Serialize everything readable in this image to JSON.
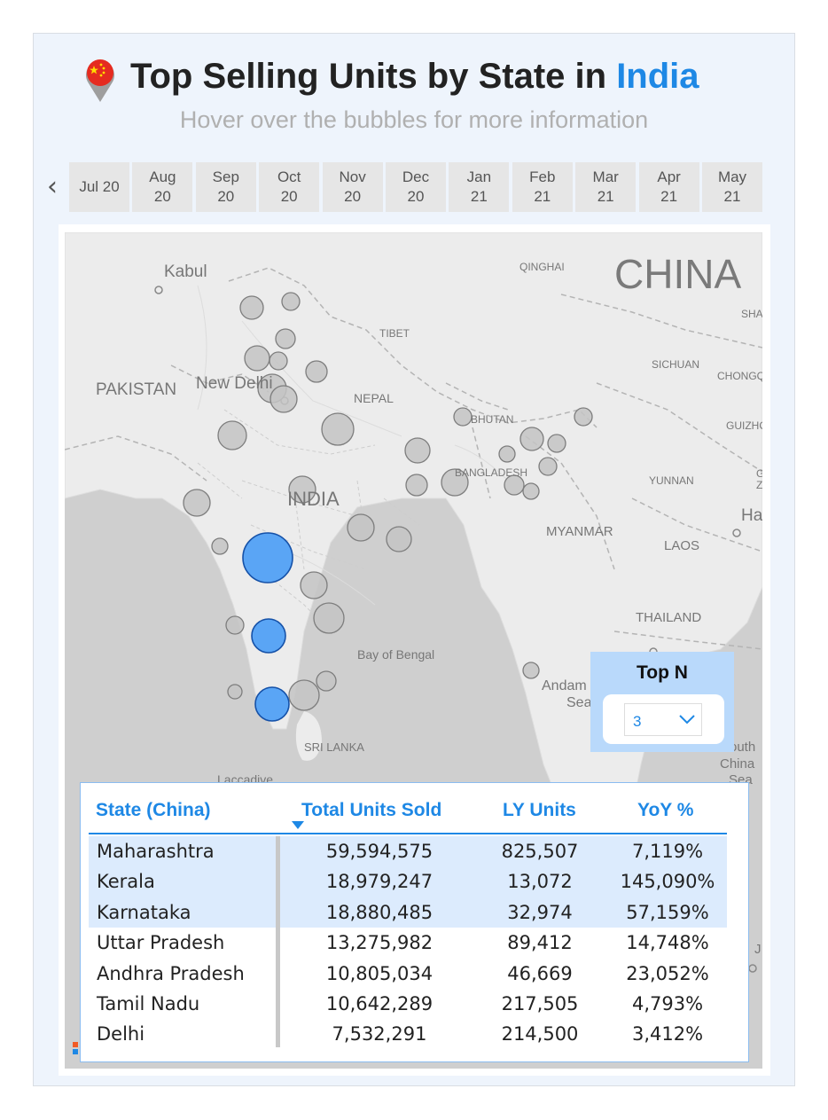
{
  "header": {
    "title_main": "Top Selling Units by State in ",
    "title_accent": "India",
    "subtitle": "Hover over the bubbles for more information"
  },
  "colors": {
    "accent": "#1e88e5",
    "selected_bubble": "#5aa5f5",
    "bubble": "#c4c4c4",
    "selected_row": "#dcebfd",
    "topn_panel": "#b9d9fb"
  },
  "icons": {
    "title_pin": "china-flag-pin-icon",
    "slicer_prev": "chevron-left-icon",
    "dropdown": "chevron-down-icon"
  },
  "date_slicer": {
    "items": [
      "Jul 20",
      "Aug\n20",
      "Sep\n20",
      "Oct\n20",
      "Nov\n20",
      "Dec\n20",
      "Jan\n21",
      "Feb\n21",
      "Mar\n21",
      "Apr\n21",
      "May\n21"
    ]
  },
  "map": {
    "labels": {
      "kabul": "Kabul",
      "china": "CHINA",
      "qinghai": "QINGHAI",
      "tibet": "TIBET",
      "sha": "SHA",
      "pakistan": "PAKISTAN",
      "new_delhi": "New Delhi",
      "nepal": "NEPAL",
      "sichuan": "SICHUAN",
      "chongq": "CHONGQ",
      "bhutan": "BHUTAN",
      "guizho": "GUIZHO",
      "bangladesh": "BANGLADESH",
      "yunnan": "YUNNAN",
      "india": "INDIA",
      "myanmar": "MYANMAR",
      "laos": "LAOS",
      "ha": "Ha",
      "thailand": "THAILAND",
      "bay_of_bengal": "Bay of Bengal",
      "andaman_1": "Andam",
      "andaman_2": "Sea",
      "south_1": "outh",
      "south_2": "China",
      "south_3": "Sea",
      "sri_lanka": "SRI LANKA",
      "laccadive": "Laccadive",
      "g": "G",
      "z": "Z",
      "j": "J"
    }
  },
  "topn": {
    "title": "Top N",
    "value": "3"
  },
  "table": {
    "headers": [
      "State (China)",
      "Total Units Sold",
      "LY Units",
      "YoY %"
    ],
    "rows": [
      {
        "state": "Maharashtra",
        "total": "59,594,575",
        "ly": "825,507",
        "yoy": "7,119%"
      },
      {
        "state": "Kerala",
        "total": "18,979,247",
        "ly": "13,072",
        "yoy": "145,090%"
      },
      {
        "state": "Karnataka",
        "total": "18,880,485",
        "ly": "32,974",
        "yoy": "57,159%"
      },
      {
        "state": "Uttar Pradesh",
        "total": "13,275,982",
        "ly": "89,412",
        "yoy": "14,748%"
      },
      {
        "state": "Andhra Pradesh",
        "total": "10,805,034",
        "ly": "46,669",
        "yoy": "23,052%"
      },
      {
        "state": "Tamil Nadu",
        "total": "10,642,289",
        "ly": "217,505",
        "yoy": "4,793%"
      },
      {
        "state": "Delhi",
        "total": "7,532,291",
        "ly": "214,500",
        "yoy": "3,412%"
      }
    ]
  }
}
